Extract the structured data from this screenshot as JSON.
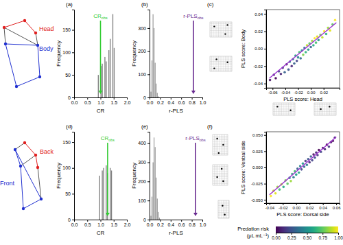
{
  "chart_data": [
    {
      "type": "histogram",
      "title": "(a)",
      "x_label": "CR",
      "y_label": "Frequency",
      "bins": [
        0.9,
        0.95,
        1.0,
        1.05,
        1.1,
        1.15,
        1.2,
        1.25,
        1.3,
        1.35,
        1.4,
        1.45,
        1.5,
        1.55,
        1.6
      ],
      "values": [
        50,
        0,
        70,
        75,
        0,
        90,
        80,
        0,
        105,
        130,
        0,
        185,
        110,
        0
      ],
      "color": "#7f7f7f",
      "xlim": [
        0,
        2
      ],
      "xticks": [
        {
          "value": 0,
          "label": "0.0"
        },
        0.5,
        {
          "value": 1,
          "label": "1.0"
        },
        1.5,
        {
          "value": 2,
          "label": "2.0"
        }
      ],
      "ylim": [
        0,
        195
      ],
      "yticks": [
        0,
        50,
        100,
        150
      ],
      "annotation": {
        "text": "CR",
        "sub": "obs",
        "x": 1.0,
        "color": "#33cc33"
      }
    },
    {
      "type": "histogram",
      "title": "(b)",
      "x_label": "r-PLS",
      "y_label": "Frequency",
      "bins": [
        0.02,
        0.04,
        0.06,
        0.08,
        0.1,
        0.12,
        0.14,
        0.16,
        0.18
      ],
      "values": [
        25,
        160,
        360,
        300,
        150,
        60,
        20,
        5
      ],
      "color": "#7f7f7f",
      "xlim": [
        0,
        1
      ],
      "xticks": [
        {
          "value": 0,
          "label": "0.0"
        },
        0.2,
        0.4,
        0.6,
        0.8,
        {
          "value": 1,
          "label": "1.0"
        }
      ],
      "ylim": [
        0,
        380
      ],
      "yticks": [
        0,
        100,
        200,
        300
      ],
      "annotation": {
        "text": "r-PLS",
        "sub": "obs",
        "x": 0.83,
        "color": "#6a2c91"
      }
    },
    {
      "type": "scatter",
      "title": "(c)",
      "x_label": "PLS score: Head",
      "y_label": "PLS score: Body",
      "x": [
        -0.064,
        -0.058,
        -0.055,
        -0.05,
        -0.047,
        -0.044,
        -0.041,
        -0.038,
        -0.035,
        -0.033,
        -0.03,
        -0.028,
        -0.026,
        -0.024,
        -0.022,
        -0.02,
        -0.018,
        -0.016,
        -0.014,
        -0.012,
        -0.01,
        -0.008,
        -0.006,
        -0.004,
        -0.002,
        0.0,
        0.002,
        0.004,
        0.006,
        0.008,
        0.01,
        0.012,
        0.015,
        0.018,
        0.021,
        0.024,
        0.027,
        0.03,
        0.034,
        0.038
      ],
      "values": [
        -0.036,
        -0.03,
        -0.034,
        -0.026,
        -0.029,
        -0.022,
        -0.027,
        -0.018,
        -0.024,
        -0.015,
        -0.02,
        -0.012,
        -0.017,
        -0.008,
        -0.014,
        -0.01,
        -0.004,
        -0.011,
        -0.002,
        -0.007,
        0.001,
        -0.004,
        0.004,
        -0.001,
        0.006,
        0.002,
        0.009,
        0.004,
        0.012,
        0.007,
        0.014,
        0.01,
        0.016,
        0.013,
        0.02,
        0.017,
        0.024,
        0.021,
        0.028,
        0.033
      ],
      "predation_risk": [
        0.05,
        0.1,
        0.0,
        0.2,
        0.1,
        0.15,
        0.3,
        0.05,
        0.25,
        0.4,
        0.1,
        0.5,
        0.3,
        0.6,
        0.2,
        0.45,
        0.7,
        0.35,
        0.55,
        0.8,
        0.4,
        0.65,
        0.9,
        0.5,
        0.75,
        0.3,
        0.85,
        0.6,
        1.0,
        0.7,
        0.95,
        0.5,
        0.8,
        0.9,
        1.0,
        0.65,
        0.85,
        0.95,
        0.75,
        1.0
      ],
      "xlim": [
        -0.07,
        0.045
      ],
      "xticks": [
        -0.06,
        -0.04,
        -0.02,
        {
          "value": 0,
          "label": "0.00"
        },
        0.02
      ],
      "ylim": [
        -0.045,
        0.045
      ],
      "yticks": [
        -0.04,
        -0.02,
        {
          "value": 0,
          "label": "0.00"
        },
        0.02,
        0.04
      ],
      "fit_line": {
        "x": [
          -0.065,
          0.04
        ],
        "values": [
          -0.034,
          0.03
        ],
        "color": "#9b30d0"
      }
    },
    {
      "type": "histogram",
      "title": "(d)",
      "x_label": "CR",
      "y_label": "Frequency",
      "bins": [
        0.95,
        1.0,
        1.05,
        1.1,
        1.15,
        1.2,
        1.25,
        1.3,
        1.35,
        1.4,
        1.45,
        1.5
      ],
      "values": [
        85,
        0,
        95,
        100,
        0,
        105,
        90,
        0,
        100,
        95,
        0
      ],
      "color": "#7f7f7f",
      "xlim": [
        0,
        2
      ],
      "xticks": [
        {
          "value": 0,
          "label": "0.0"
        },
        0.5,
        {
          "value": 1,
          "label": "1.0"
        },
        1.5,
        {
          "value": 2,
          "label": "2.0"
        }
      ],
      "ylim": [
        0,
        170
      ],
      "yticks": [
        0,
        50,
        100,
        150
      ],
      "annotation": {
        "text": "CR",
        "sub": "obs",
        "x": 1.27,
        "color": "#33cc33"
      }
    },
    {
      "type": "histogram",
      "title": "(e)",
      "x_label": "r-PLS",
      "y_label": "Frequency",
      "bins": [
        0.02,
        0.04,
        0.06,
        0.08,
        0.1,
        0.12,
        0.14,
        0.16,
        0.18,
        0.2,
        0.22
      ],
      "values": [
        20,
        120,
        300,
        430,
        380,
        220,
        110,
        40,
        10,
        3
      ],
      "color": "#7f7f7f",
      "xlim": [
        0,
        1
      ],
      "xticks": [
        {
          "value": 0,
          "label": "0.0"
        },
        0.2,
        0.4,
        0.6,
        0.8,
        {
          "value": 1,
          "label": "1.0"
        }
      ],
      "ylim": [
        0,
        460
      ],
      "yticks": [
        0,
        100,
        200,
        300,
        400
      ],
      "annotation": {
        "text": "r-PLS",
        "sub": "obs",
        "x": 0.87,
        "color": "#6a2c91"
      }
    },
    {
      "type": "scatter",
      "title": "(f)",
      "x_label": "PLS score: Dorsal side",
      "y_label": "PLS score: Ventral side",
      "x": [
        -0.038,
        -0.034,
        -0.031,
        -0.028,
        -0.025,
        -0.022,
        -0.019,
        -0.016,
        -0.013,
        -0.01,
        -0.008,
        -0.006,
        -0.004,
        -0.002,
        0.0,
        0.002,
        0.004,
        0.006,
        0.008,
        0.01,
        0.012,
        0.014,
        0.016,
        0.018,
        0.02,
        0.022,
        0.024,
        0.026,
        0.028,
        0.03,
        0.032,
        0.034,
        0.037,
        0.04,
        0.043,
        0.046,
        0.049,
        0.052,
        0.055,
        0.058
      ],
      "values": [
        -0.044,
        -0.036,
        -0.04,
        -0.03,
        -0.034,
        -0.026,
        -0.03,
        -0.02,
        -0.025,
        -0.016,
        -0.021,
        -0.01,
        -0.015,
        -0.006,
        -0.011,
        -0.002,
        -0.008,
        0.002,
        -0.003,
        0.006,
        0.001,
        0.01,
        0.004,
        0.013,
        0.008,
        0.017,
        0.011,
        0.02,
        0.015,
        0.023,
        0.019,
        0.027,
        0.024,
        0.03,
        0.028,
        0.035,
        0.032,
        0.039,
        0.041,
        0.046
      ],
      "predation_risk": [
        1.0,
        0.9,
        0.95,
        0.85,
        0.7,
        0.9,
        0.6,
        0.8,
        0.75,
        0.5,
        0.85,
        0.65,
        0.4,
        0.7,
        0.55,
        0.3,
        0.6,
        0.45,
        0.2,
        0.5,
        0.35,
        0.15,
        0.4,
        0.25,
        0.1,
        0.3,
        0.2,
        0.05,
        0.25,
        0.1,
        0.15,
        0.0,
        0.2,
        0.05,
        0.1,
        0.0,
        0.15,
        0.05,
        0.0,
        0.1
      ],
      "xlim": [
        -0.045,
        0.065
      ],
      "xticks": [
        -0.04,
        -0.02,
        {
          "value": 0,
          "label": "0.00"
        },
        0.02,
        0.04,
        0.06
      ],
      "ylim": [
        -0.055,
        0.055
      ],
      "yticks": [
        {
          "value": -0.05,
          "label": "-0.050"
        },
        -0.025,
        {
          "value": 0,
          "label": "0.000"
        },
        0.025,
        {
          "value": 0.05,
          "label": "0.050"
        }
      ],
      "fit_line": {
        "x": [
          -0.04,
          0.06
        ],
        "values": [
          -0.042,
          0.047
        ],
        "color": "#9b30d0"
      },
      "colorbar": {
        "title": [
          "Predation risk",
          "(μL mL⁻¹)"
        ],
        "range": [
          0,
          1
        ],
        "ticks": [
          {
            "value": 0,
            "label": "0.00"
          },
          0.25,
          {
            "value": 0.5,
            "label": "0.50"
          },
          0.75,
          {
            "value": 1,
            "label": "1.00"
          }
        ]
      }
    }
  ],
  "schematics": [
    {
      "labels": [
        "Head",
        "Body"
      ],
      "colors": [
        "#e02020",
        "#2030d0"
      ]
    },
    {
      "labels": [
        "Back",
        "Front"
      ],
      "colors": [
        "#e02020",
        "#2030d0"
      ]
    }
  ]
}
